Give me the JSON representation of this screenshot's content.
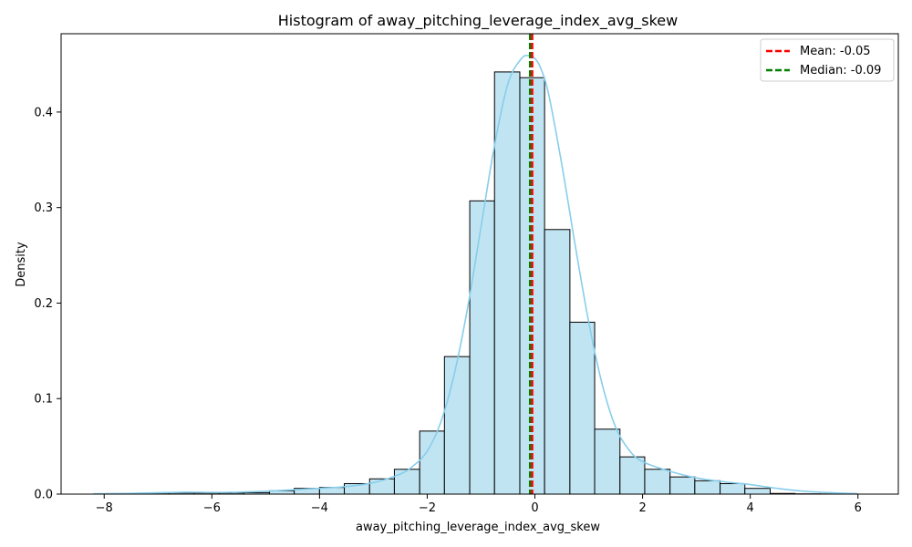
{
  "chart_data": {
    "type": "histogram",
    "title": "Histogram of away_pitching_leverage_index_avg_skew",
    "xlabel": "away_pitching_leverage_index_avg_skew",
    "ylabel": "Density",
    "xlim": [
      -8.8,
      6.75
    ],
    "ylim": [
      0,
      0.482
    ],
    "xticks": [
      -8,
      -6,
      -4,
      -2,
      0,
      2,
      4,
      6
    ],
    "yticks": [
      0.0,
      0.1,
      0.2,
      0.3,
      0.4
    ],
    "xtick_labels": [
      "−8",
      "−6",
      "−4",
      "−2",
      "0",
      "2",
      "4",
      "6"
    ],
    "ytick_labels": [
      "0.0",
      "0.1",
      "0.2",
      "0.3",
      "0.4"
    ],
    "bins": {
      "edges": [
        -8.19,
        -7.72,
        -7.26,
        -6.79,
        -6.33,
        -5.86,
        -5.4,
        -4.93,
        -4.47,
        -4.0,
        -3.54,
        -3.07,
        -2.61,
        -2.14,
        -1.68,
        -1.21,
        -0.75,
        -0.28,
        0.18,
        0.65,
        1.11,
        1.58,
        2.04,
        2.51,
        2.97,
        3.44,
        3.9,
        4.37,
        4.83,
        5.3,
        5.76
      ],
      "density": [
        0.0002,
        0.0002,
        0.0003,
        0.0012,
        0.0012,
        0.0012,
        0.0015,
        0.0035,
        0.006,
        0.007,
        0.011,
        0.016,
        0.026,
        0.066,
        0.144,
        0.307,
        0.442,
        0.436,
        0.277,
        0.18,
        0.068,
        0.039,
        0.026,
        0.018,
        0.014,
        0.011,
        0.006,
        0.0007,
        0.0003,
        0.0002
      ]
    },
    "kde": {
      "x": [
        -8.2,
        -7.5,
        -7.0,
        -6.5,
        -6.0,
        -5.5,
        -5.0,
        -4.5,
        -4.0,
        -3.5,
        -3.0,
        -2.5,
        -2.25,
        -2.0,
        -1.75,
        -1.5,
        -1.25,
        -1.0,
        -0.75,
        -0.5,
        -0.25,
        -0.1,
        0.0,
        0.1,
        0.25,
        0.5,
        0.75,
        1.0,
        1.25,
        1.5,
        1.75,
        2.0,
        2.5,
        3.0,
        3.5,
        4.0,
        4.5,
        5.0,
        5.5,
        6.0
      ],
      "y": [
        0.0003,
        0.0008,
        0.0015,
        0.002,
        0.0018,
        0.002,
        0.003,
        0.0045,
        0.006,
        0.008,
        0.012,
        0.021,
        0.03,
        0.045,
        0.075,
        0.125,
        0.195,
        0.28,
        0.365,
        0.43,
        0.456,
        0.459,
        0.456,
        0.447,
        0.42,
        0.345,
        0.26,
        0.18,
        0.115,
        0.07,
        0.046,
        0.034,
        0.024,
        0.017,
        0.013,
        0.01,
        0.006,
        0.003,
        0.0015,
        0.0004
      ]
    },
    "lines": [
      {
        "name": "Mean: -0.05",
        "value": -0.05,
        "color": "#ff0000",
        "style": "dashed"
      },
      {
        "name": "Median: -0.09",
        "value": -0.09,
        "color": "#008000",
        "style": "dashed"
      }
    ],
    "colors": {
      "bar_fill": "#c1e4f2",
      "bar_edge": "#000000",
      "kde": "#87ceeb"
    },
    "legend_position": "top-right",
    "grid": false
  }
}
